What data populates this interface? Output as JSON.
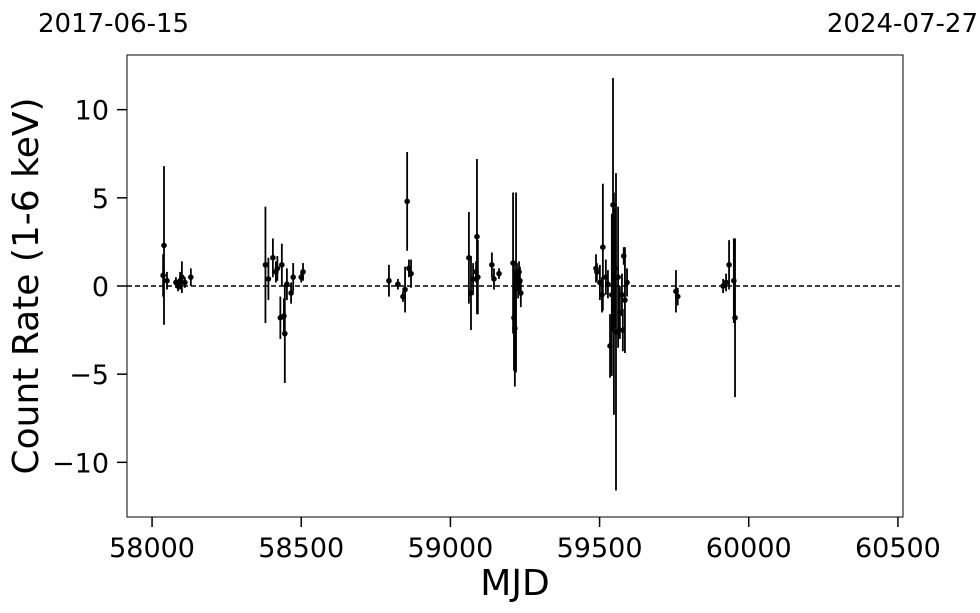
{
  "chart_data": {
    "type": "errorbar-scatter",
    "top_left_label": "2017-06-15",
    "top_right_label": "2024-07-27",
    "xlabel": "MJD",
    "ylabel": "Count Rate (1-6 keV)",
    "xlim": [
      57916,
      60517
    ],
    "ylim": [
      -13.1,
      13.1
    ],
    "xticks": [
      58000,
      58500,
      59000,
      59500,
      60000,
      60500
    ],
    "yticks": [
      {
        "value": -10,
        "label": "−10"
      },
      {
        "value": -5,
        "label": "−5"
      },
      0,
      5,
      10
    ],
    "reference_line": 0,
    "color": "#000000",
    "x": [
      58040,
      58037,
      58050,
      58080,
      58087,
      58094,
      58100,
      58110,
      58130,
      58380,
      58390,
      58405,
      58415,
      58420,
      58430,
      58435,
      58442,
      58445,
      58452,
      58466,
      58473,
      58500,
      58506,
      58794,
      58824,
      58841,
      58848,
      58855,
      58861,
      58868,
      59062,
      59069,
      59076,
      59086,
      59089,
      59092,
      59139,
      59146,
      59163,
      59210,
      59213,
      59216,
      59220,
      59223,
      59227,
      59230,
      59233,
      59236,
      59488,
      59491,
      59501,
      59508,
      59511,
      59521,
      59528,
      59535,
      59541,
      59545,
      59548,
      59551,
      59555,
      59562,
      59568,
      59575,
      59578,
      59581,
      59585,
      59592,
      59756,
      59762,
      59914,
      59924,
      59934,
      59950,
      59954
    ],
    "values": [
      2.3,
      0.6,
      0.3,
      0.2,
      0.0,
      0.3,
      0.5,
      0.2,
      0.5,
      1.2,
      0.4,
      1.6,
      0.8,
      1.0,
      -1.8,
      1.2,
      -1.7,
      -2.7,
      0.1,
      -0.4,
      0.5,
      0.5,
      0.8,
      0.3,
      0.1,
      -0.6,
      -0.2,
      4.8,
      1.0,
      0.7,
      1.6,
      -0.4,
      0.4,
      0.8,
      2.8,
      0.5,
      1.2,
      0.4,
      0.7,
      1.3,
      -1.8,
      -2.4,
      0.2,
      0.5,
      -0.1,
      0.8,
      0.3,
      -0.4,
      1.0,
      0.8,
      0.2,
      -0.5,
      2.2,
      0.5,
      0.1,
      -3.4,
      -0.5,
      4.6,
      -1.0,
      1.0,
      -2.6,
      0.5,
      -1.5,
      -0.5,
      -2.5,
      1.7,
      -0.8,
      0.2,
      -0.3,
      -0.6,
      0.0,
      0.2,
      1.2,
      0.3,
      -1.8
    ],
    "errors": [
      4.5,
      1.2,
      0.5,
      0.3,
      0.3,
      0.5,
      0.9,
      0.3,
      0.5,
      3.3,
      1.2,
      1.1,
      0.6,
      0.7,
      1.2,
      1.2,
      1.0,
      2.8,
      0.9,
      0.6,
      0.8,
      0.3,
      0.5,
      0.9,
      0.3,
      0.3,
      1.3,
      2.8,
      0.5,
      0.8,
      2.6,
      2.1,
      0.9,
      0.6,
      4.4,
      2.1,
      0.7,
      0.6,
      0.3,
      4.0,
      3.0,
      3.3,
      5.1,
      0.8,
      0.6,
      0.6,
      0.8,
      0.8,
      0.8,
      0.5,
      1.0,
      1.0,
      3.6,
      1.0,
      0.8,
      1.8,
      4.6,
      7.2,
      6.3,
      3.4,
      9.0,
      4.0,
      1.5,
      1.2,
      1.2,
      0.5,
      3.0,
      0.8,
      1.2,
      0.5,
      0.4,
      0.5,
      1.4,
      2.4,
      4.5
    ]
  }
}
